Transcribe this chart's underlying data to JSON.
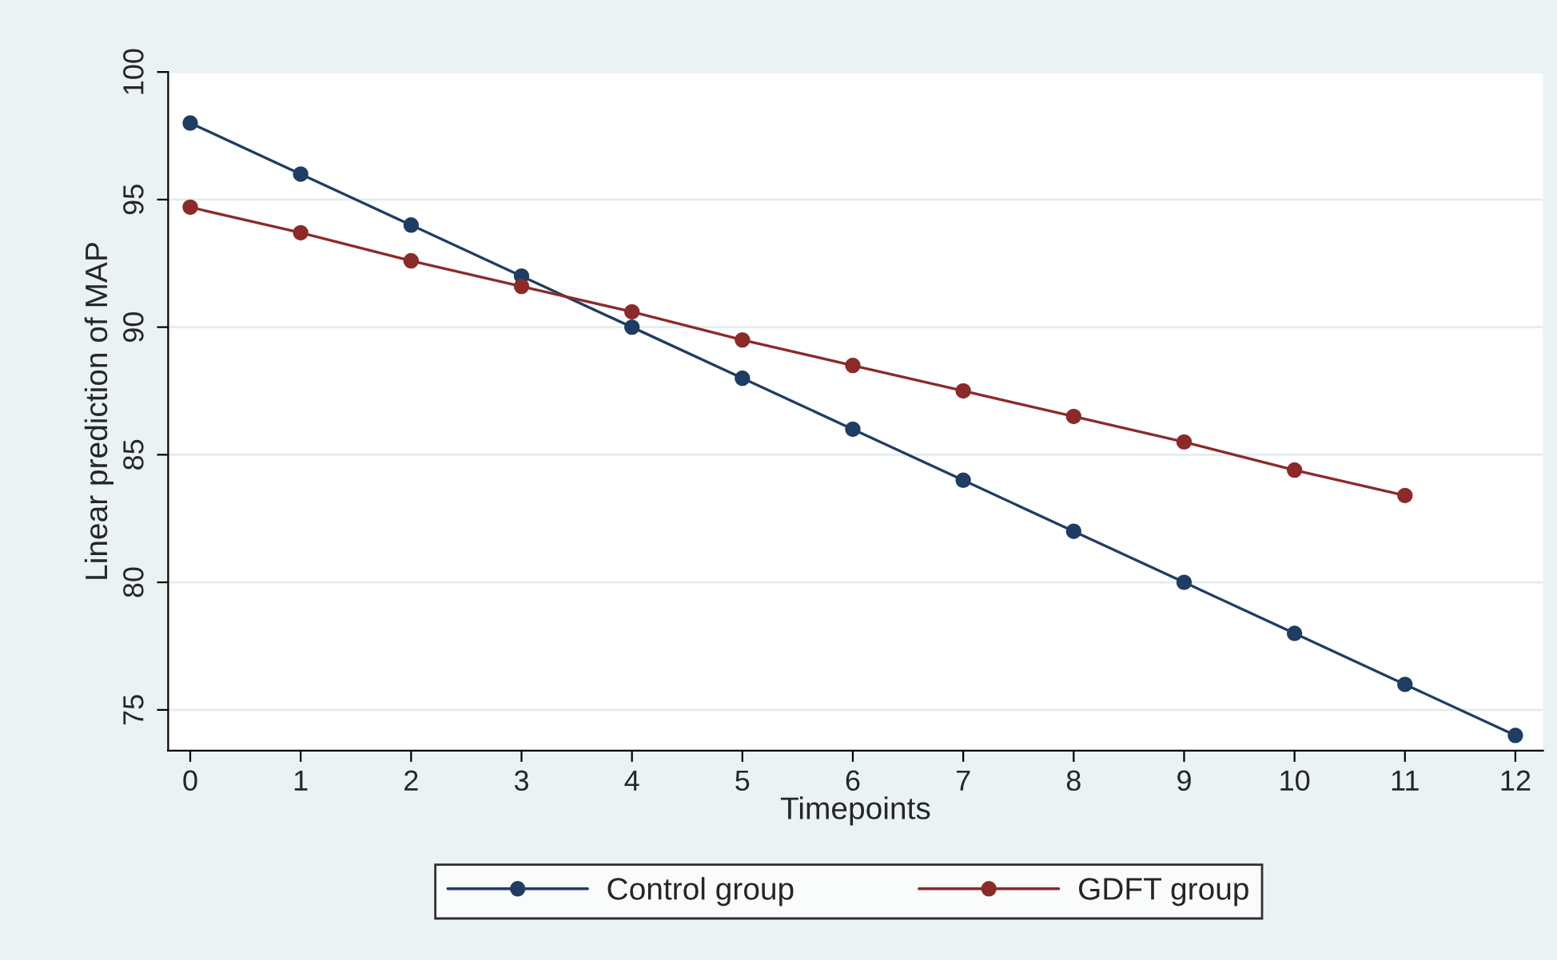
{
  "chart_data": {
    "type": "line",
    "xlabel": "Timepoints",
    "ylabel": "Linear prediction of MAP",
    "x": [
      0,
      1,
      2,
      3,
      4,
      5,
      6,
      7,
      8,
      9,
      10,
      11,
      12
    ],
    "series": [
      {
        "name": "Control group",
        "color": "#1f3d63",
        "values": [
          98,
          96,
          94,
          92,
          90,
          88,
          86,
          84,
          82,
          80,
          78,
          76,
          74
        ]
      },
      {
        "name": "GDFT group",
        "color": "#8c2a2a",
        "values": [
          94.7,
          93.7,
          92.6,
          91.6,
          90.6,
          89.5,
          88.5,
          87.5,
          86.5,
          85.5,
          84.4,
          83.4,
          null
        ]
      }
    ],
    "xlim": [
      -0.2,
      12.25
    ],
    "ylim": [
      73.4,
      100
    ],
    "xticks": [
      0,
      1,
      2,
      3,
      4,
      5,
      6,
      7,
      8,
      9,
      10,
      11,
      12
    ],
    "yticks": [
      75,
      80,
      85,
      90,
      95,
      100
    ],
    "grid": "y",
    "legend": "bottom",
    "marker": "circle",
    "line_style": "solid"
  }
}
